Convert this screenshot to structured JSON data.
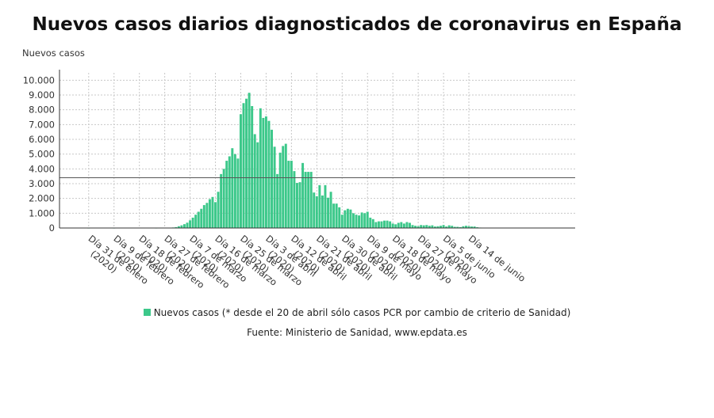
{
  "chart_data": {
    "type": "bar",
    "title": "Nuevos casos diarios diagnosticados de coronavirus en España",
    "ylabel": "Nuevos casos",
    "ylim": [
      0,
      10500
    ],
    "yticks": [
      0,
      1000,
      2000,
      3000,
      4000,
      5000,
      6000,
      7000,
      8000,
      9000,
      10000
    ],
    "ytick_labels": [
      "0",
      "1.000",
      "2.000",
      "3.000",
      "4.000",
      "5.000",
      "6.000",
      "7.000",
      "8.000",
      "9.000",
      "10.000"
    ],
    "grid": true,
    "color": "#3cc88a",
    "reference_line": 3400,
    "x_start": "2020-01-31",
    "xticks": [
      {
        "date": "2020-01-31",
        "label": [
          "Día 31 de enero",
          "(2020)"
        ]
      },
      {
        "date": "2020-02-09",
        "label": [
          "Día 9 de febrero",
          "(2020)"
        ]
      },
      {
        "date": "2020-02-18",
        "label": [
          "Día 18 de febrero",
          "(2020)"
        ]
      },
      {
        "date": "2020-02-27",
        "label": [
          "Día 27 de febrero",
          "(2020)"
        ]
      },
      {
        "date": "2020-03-07",
        "label": [
          "Día 7 de marzo",
          "(2020)"
        ]
      },
      {
        "date": "2020-03-16",
        "label": [
          "Día 16 de marzo",
          "(2020)"
        ]
      },
      {
        "date": "2020-03-25",
        "label": [
          "Día 25 de marzo",
          "(2020)"
        ]
      },
      {
        "date": "2020-04-03",
        "label": [
          "Día 3 de abril",
          "(2020)"
        ]
      },
      {
        "date": "2020-04-12",
        "label": [
          "Día 12 de abril",
          "(2020)"
        ]
      },
      {
        "date": "2020-04-21",
        "label": [
          "Día 21 de abril",
          "(2020)"
        ]
      },
      {
        "date": "2020-04-30",
        "label": [
          "Día 30 de abril",
          "(2020)"
        ]
      },
      {
        "date": "2020-05-09",
        "label": [
          "Día 9 de mayo",
          "(2020)"
        ]
      },
      {
        "date": "2020-05-18",
        "label": [
          "Día 18 de mayo",
          "(2020)"
        ]
      },
      {
        "date": "2020-05-27",
        "label": [
          "Día 27 de mayo",
          "(2020)"
        ]
      },
      {
        "date": "2020-06-05",
        "label": [
          "Día 5 de junio",
          "(2020)"
        ]
      },
      {
        "date": "2020-06-14",
        "label": [
          "Día 14 de junio"
        ]
      }
    ],
    "series": [
      {
        "name": "Nuevos casos (* desde el 20 de abril sólo casos PCR por cambio de criterio de Sanidad)",
        "values": [
          1,
          0,
          0,
          0,
          0,
          0,
          0,
          0,
          0,
          1,
          0,
          0,
          0,
          0,
          0,
          0,
          0,
          0,
          0,
          0,
          0,
          0,
          0,
          0,
          2,
          5,
          8,
          10,
          15,
          25,
          35,
          60,
          120,
          180,
          260,
          360,
          520,
          700,
          900,
          1100,
          1300,
          1550,
          1700,
          1950,
          2100,
          1750,
          2450,
          3650,
          4000,
          4550,
          4850,
          5400,
          5000,
          4700,
          7700,
          8450,
          8750,
          9150,
          8250,
          6350,
          5800,
          8100,
          7450,
          7550,
          7250,
          6650,
          5500,
          3650,
          5100,
          5550,
          5700,
          4550,
          4550,
          3850,
          3050,
          3100,
          4400,
          3800,
          3800,
          3800,
          2400,
          2150,
          2900,
          2200,
          2900,
          2050,
          2450,
          1650,
          1650,
          1400,
          900,
          1200,
          1300,
          1250,
          1000,
          900,
          850,
          1050,
          1000,
          1100,
          700,
          600,
          400,
          450,
          450,
          500,
          500,
          450,
          300,
          250,
          350,
          400,
          300,
          400,
          350,
          200,
          150,
          120,
          200,
          180,
          200,
          150,
          180,
          100,
          120,
          150,
          200,
          100,
          180,
          150,
          80,
          80,
          60,
          120,
          150,
          120,
          100,
          100,
          50,
          30
        ]
      }
    ]
  },
  "legend": {
    "label": "Nuevos casos (* desde el 20 de abril sólo casos PCR por cambio de criterio de Sanidad)"
  },
  "source": "Fuente: Ministerio de Sanidad, www.epdata.es"
}
